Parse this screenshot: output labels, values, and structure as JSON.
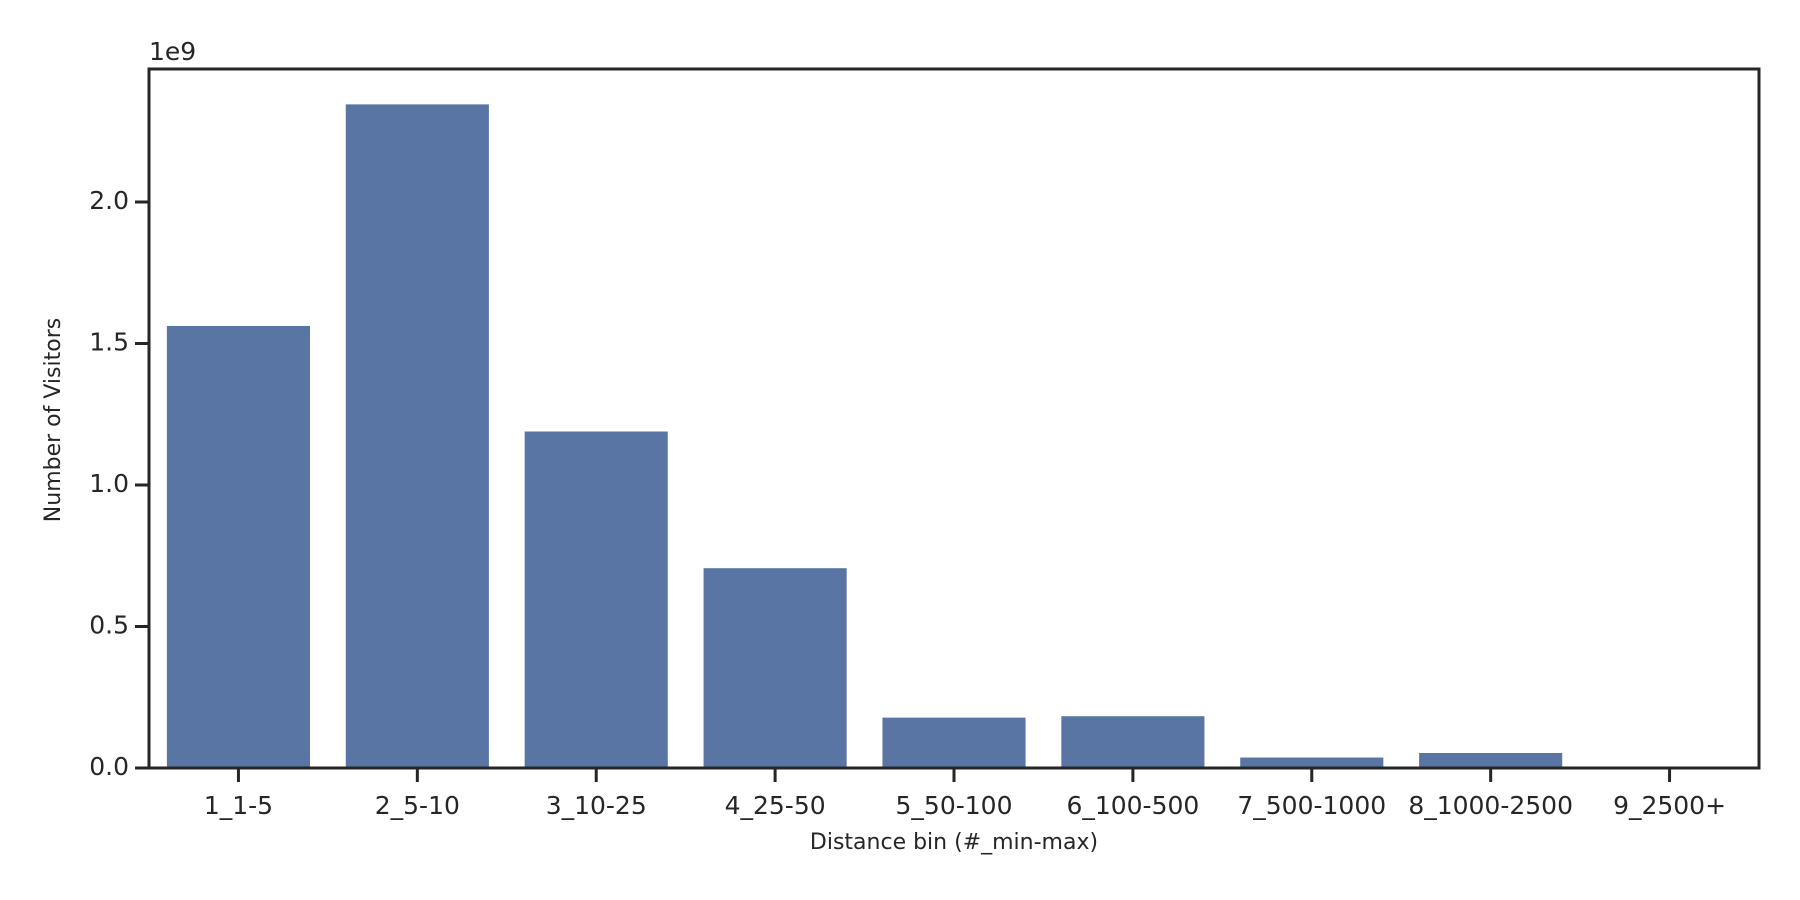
{
  "chart_data": {
    "type": "bar",
    "offset_label": "1e9",
    "x_label": "Distance bin (#_min-max)",
    "y_label": "Number of Visitors",
    "categories": [
      "1_1-5",
      "2_5-10",
      "3_10-25",
      "4_25-50",
      "5_50-100",
      "6_100-500",
      "7_500-1000",
      "8_1000-2500",
      "9_2500+"
    ],
    "values": [
      1.562,
      2.345,
      1.189,
      0.706,
      0.178,
      0.183,
      0.037,
      0.053,
      0
    ],
    "color": "#5975a4",
    "ylim": [
      0,
      2.47
    ],
    "yticks": [
      {
        "value": 0,
        "label": "0.0"
      },
      {
        "value": 0.5,
        "label": "0.5"
      },
      {
        "value": 1,
        "label": "1.0"
      },
      1.5,
      {
        "value": 2,
        "label": "2.0"
      }
    ]
  }
}
